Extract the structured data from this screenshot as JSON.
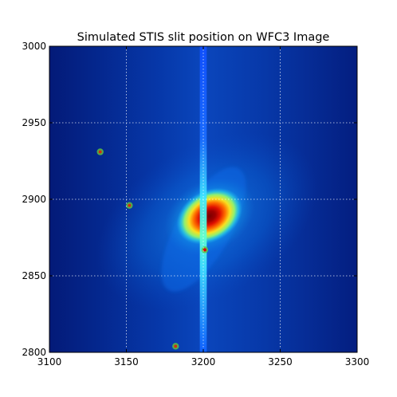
{
  "chart_data": {
    "type": "heatmap",
    "title": "Simulated STIS slit position on WFC3 Image",
    "xlabel": "",
    "ylabel": "",
    "xlim": [
      3100,
      3300
    ],
    "ylim": [
      2800,
      3000
    ],
    "grid": true,
    "colormap": "jet",
    "x_ticks": [
      3100,
      3150,
      3200,
      3250,
      3300
    ],
    "y_ticks": [
      2800,
      2850,
      2900,
      2950,
      3000
    ],
    "x_tick_labels": [
      "3100",
      "3150",
      "3200",
      "3250",
      "3300"
    ],
    "y_tick_labels": [
      "2800",
      "2850",
      "2900",
      "2950",
      "3000"
    ],
    "galaxy_center": [
      3204,
      2889
    ],
    "slit": {
      "x_center": 3200,
      "width": 4.5
    },
    "point_sources": [
      {
        "x": 3133,
        "y": 2931
      },
      {
        "x": 3182,
        "y": 2804
      },
      {
        "x": 3152,
        "y": 2896
      },
      {
        "x": 3201,
        "y": 2867
      }
    ]
  }
}
